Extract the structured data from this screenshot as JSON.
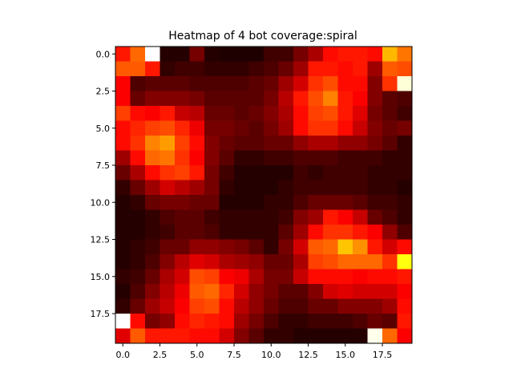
{
  "chart_data": {
    "type": "heatmap",
    "title": "Heatmap of 4 bot coverage:spiral",
    "colormap": "hot",
    "xlim": [
      -0.5,
      19.5
    ],
    "ylim": [
      19.5,
      -0.5
    ],
    "y_inverted": true,
    "x_ticks": [
      0,
      2.5,
      5,
      7.5,
      10,
      12.5,
      15,
      17.5
    ],
    "x_tick_labels": [
      "0.0",
      "2.5",
      "5.0",
      "7.5",
      "10.0",
      "12.5",
      "15.0",
      "17.5"
    ],
    "y_ticks": [
      0,
      2.5,
      5,
      7.5,
      10,
      12.5,
      15,
      17.5
    ],
    "y_tick_labels": [
      "0.0",
      "2.5",
      "5.0",
      "7.5",
      "10.0",
      "12.5",
      "15.0",
      "17.5"
    ],
    "vmin": 0,
    "vmax": 1,
    "values": [
      [
        0.4,
        0.52,
        1.0,
        0.04,
        0.04,
        0.16,
        0.04,
        0.03,
        0.03,
        0.03,
        0.08,
        0.08,
        0.16,
        0.24,
        0.38,
        0.4,
        0.4,
        0.38,
        0.64,
        0.54
      ],
      [
        0.5,
        0.5,
        0.4,
        0.06,
        0.08,
        0.08,
        0.06,
        0.06,
        0.06,
        0.08,
        0.1,
        0.14,
        0.22,
        0.4,
        0.4,
        0.38,
        0.4,
        0.22,
        0.5,
        0.48
      ],
      [
        0.36,
        0.1,
        0.12,
        0.12,
        0.12,
        0.1,
        0.1,
        0.1,
        0.1,
        0.12,
        0.14,
        0.22,
        0.3,
        0.44,
        0.48,
        0.38,
        0.38,
        0.18,
        0.44,
        0.96
      ],
      [
        0.36,
        0.14,
        0.18,
        0.18,
        0.18,
        0.16,
        0.12,
        0.12,
        0.12,
        0.12,
        0.16,
        0.26,
        0.4,
        0.48,
        0.56,
        0.4,
        0.36,
        0.18,
        0.12,
        0.1
      ],
      [
        0.46,
        0.38,
        0.36,
        0.4,
        0.28,
        0.26,
        0.14,
        0.14,
        0.12,
        0.14,
        0.18,
        0.24,
        0.38,
        0.46,
        0.48,
        0.4,
        0.32,
        0.16,
        0.12,
        0.08
      ],
      [
        0.38,
        0.42,
        0.46,
        0.48,
        0.42,
        0.34,
        0.16,
        0.16,
        0.14,
        0.12,
        0.16,
        0.22,
        0.38,
        0.44,
        0.44,
        0.38,
        0.28,
        0.18,
        0.14,
        0.16
      ],
      [
        0.38,
        0.44,
        0.56,
        0.6,
        0.46,
        0.38,
        0.18,
        0.14,
        0.12,
        0.12,
        0.14,
        0.14,
        0.2,
        0.24,
        0.24,
        0.2,
        0.2,
        0.16,
        0.12,
        0.06
      ],
      [
        0.22,
        0.38,
        0.52,
        0.54,
        0.44,
        0.36,
        0.18,
        0.12,
        0.06,
        0.06,
        0.08,
        0.08,
        0.1,
        0.1,
        0.1,
        0.08,
        0.08,
        0.08,
        0.06,
        0.06
      ],
      [
        0.14,
        0.24,
        0.38,
        0.44,
        0.46,
        0.4,
        0.16,
        0.08,
        0.04,
        0.04,
        0.04,
        0.04,
        0.08,
        0.06,
        0.08,
        0.08,
        0.08,
        0.06,
        0.06,
        0.06
      ],
      [
        0.06,
        0.14,
        0.22,
        0.3,
        0.26,
        0.22,
        0.16,
        0.06,
        0.04,
        0.04,
        0.04,
        0.06,
        0.08,
        0.08,
        0.08,
        0.08,
        0.08,
        0.06,
        0.06,
        0.04
      ],
      [
        0.04,
        0.06,
        0.14,
        0.16,
        0.16,
        0.14,
        0.14,
        0.04,
        0.04,
        0.04,
        0.06,
        0.06,
        0.1,
        0.14,
        0.14,
        0.14,
        0.12,
        0.08,
        0.08,
        0.06
      ],
      [
        0.04,
        0.04,
        0.06,
        0.1,
        0.12,
        0.12,
        0.08,
        0.06,
        0.06,
        0.06,
        0.06,
        0.08,
        0.18,
        0.22,
        0.4,
        0.36,
        0.28,
        0.14,
        0.1,
        0.06
      ],
      [
        0.04,
        0.04,
        0.06,
        0.08,
        0.12,
        0.12,
        0.1,
        0.06,
        0.06,
        0.06,
        0.06,
        0.12,
        0.22,
        0.38,
        0.44,
        0.44,
        0.4,
        0.36,
        0.2,
        0.1
      ],
      [
        0.04,
        0.06,
        0.08,
        0.14,
        0.14,
        0.2,
        0.2,
        0.18,
        0.16,
        0.12,
        0.06,
        0.16,
        0.3,
        0.5,
        0.52,
        0.66,
        0.58,
        0.4,
        0.3,
        0.38
      ],
      [
        0.04,
        0.06,
        0.1,
        0.18,
        0.26,
        0.32,
        0.3,
        0.24,
        0.22,
        0.2,
        0.14,
        0.14,
        0.24,
        0.46,
        0.48,
        0.52,
        0.52,
        0.52,
        0.44,
        0.76
      ],
      [
        0.06,
        0.08,
        0.14,
        0.24,
        0.3,
        0.48,
        0.46,
        0.36,
        0.34,
        0.24,
        0.16,
        0.16,
        0.28,
        0.38,
        0.38,
        0.38,
        0.36,
        0.38,
        0.38,
        0.4
      ],
      [
        0.04,
        0.1,
        0.18,
        0.26,
        0.34,
        0.5,
        0.52,
        0.42,
        0.3,
        0.2,
        0.16,
        0.12,
        0.12,
        0.18,
        0.3,
        0.32,
        0.3,
        0.3,
        0.3,
        0.36
      ],
      [
        0.06,
        0.14,
        0.22,
        0.28,
        0.36,
        0.46,
        0.48,
        0.38,
        0.26,
        0.2,
        0.14,
        0.1,
        0.1,
        0.14,
        0.14,
        0.18,
        0.18,
        0.18,
        0.22,
        0.38
      ],
      [
        1.0,
        0.38,
        0.16,
        0.2,
        0.38,
        0.42,
        0.4,
        0.38,
        0.22,
        0.16,
        0.1,
        0.06,
        0.06,
        0.08,
        0.08,
        0.08,
        0.1,
        0.14,
        0.12,
        0.4
      ],
      [
        0.32,
        0.5,
        0.4,
        0.4,
        0.4,
        0.38,
        0.38,
        0.3,
        0.18,
        0.12,
        0.06,
        0.06,
        0.04,
        0.04,
        0.04,
        0.04,
        0.04,
        0.98,
        0.52,
        0.36
      ]
    ]
  }
}
